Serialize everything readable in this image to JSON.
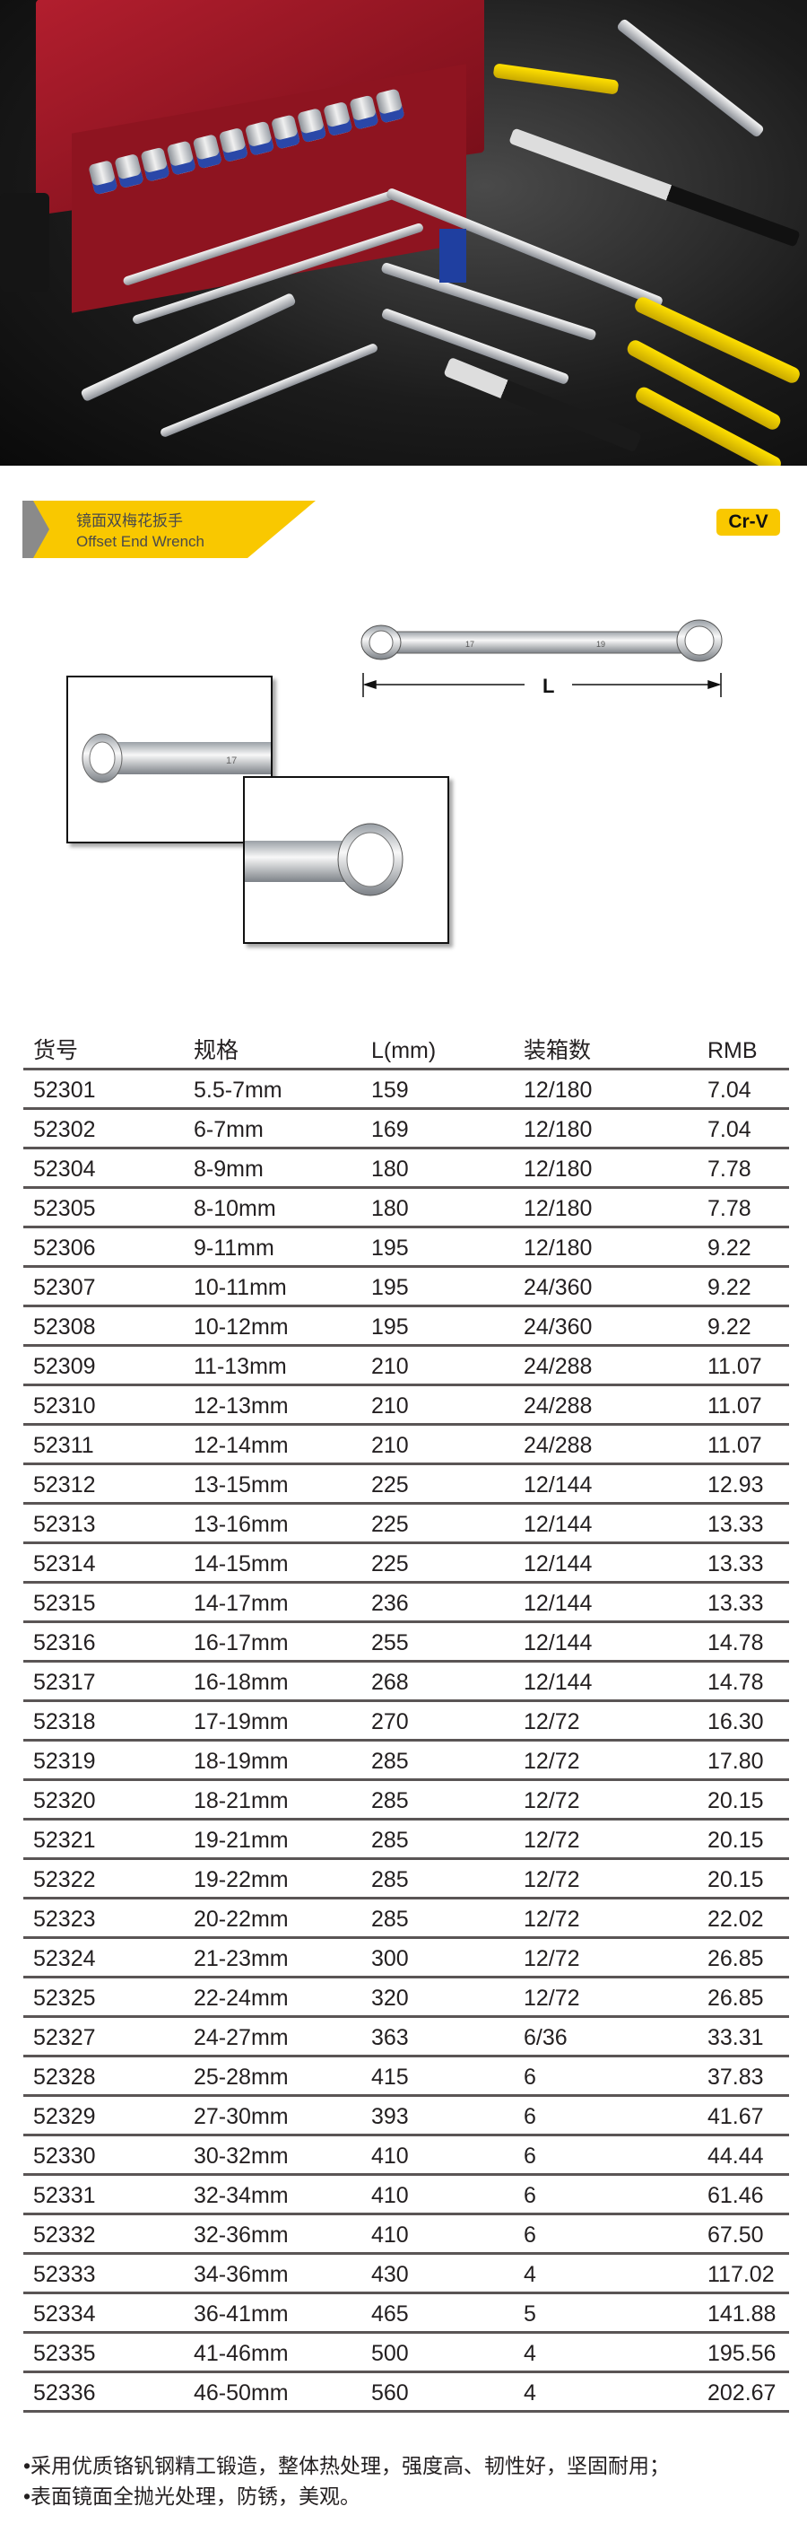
{
  "product": {
    "title_cn": "镜面双梅花扳手",
    "title_en": "Offset End Wrench",
    "material_badge": "Cr-V",
    "dimension_label": "L",
    "wrench_marks": [
      "17",
      "19"
    ],
    "brand_color": "#f9c800"
  },
  "table": {
    "headers": [
      "货号",
      "规格",
      "L(mm)",
      "装箱数",
      "RMB"
    ],
    "rows": [
      [
        "52301",
        "5.5-7mm",
        "159",
        "12/180",
        "7.04"
      ],
      [
        "52302",
        "6-7mm",
        "169",
        "12/180",
        "7.04"
      ],
      [
        "52304",
        "8-9mm",
        "180",
        "12/180",
        "7.78"
      ],
      [
        "52305",
        "8-10mm",
        "180",
        "12/180",
        "7.78"
      ],
      [
        "52306",
        "9-11mm",
        "195",
        "12/180",
        "9.22"
      ],
      [
        "52307",
        "10-11mm",
        "195",
        "24/360",
        "9.22"
      ],
      [
        "52308",
        "10-12mm",
        "195",
        "24/360",
        "9.22"
      ],
      [
        "52309",
        "11-13mm",
        "210",
        "24/288",
        "11.07"
      ],
      [
        "52310",
        "12-13mm",
        "210",
        "24/288",
        "11.07"
      ],
      [
        "52311",
        "12-14mm",
        "210",
        "24/288",
        "11.07"
      ],
      [
        "52312",
        "13-15mm",
        "225",
        "12/144",
        "12.93"
      ],
      [
        "52313",
        "13-16mm",
        "225",
        "12/144",
        "13.33"
      ],
      [
        "52314",
        "14-15mm",
        "225",
        "12/144",
        "13.33"
      ],
      [
        "52315",
        "14-17mm",
        "236",
        "12/144",
        "13.33"
      ],
      [
        "52316",
        "16-17mm",
        "255",
        "12/144",
        "14.78"
      ],
      [
        "52317",
        "16-18mm",
        "268",
        "12/144",
        "14.78"
      ],
      [
        "52318",
        "17-19mm",
        "270",
        "12/72",
        "16.30"
      ],
      [
        "52319",
        "18-19mm",
        "285",
        "12/72",
        "17.80"
      ],
      [
        "52320",
        "18-21mm",
        "285",
        "12/72",
        "20.15"
      ],
      [
        "52321",
        "19-21mm",
        "285",
        "12/72",
        "20.15"
      ],
      [
        "52322",
        "19-22mm",
        "285",
        "12/72",
        "20.15"
      ],
      [
        "52323",
        "20-22mm",
        "285",
        "12/72",
        "22.02"
      ],
      [
        "52324",
        "21-23mm",
        "300",
        "12/72",
        "26.85"
      ],
      [
        "52325",
        "22-24mm",
        "320",
        "12/72",
        "26.85"
      ],
      [
        "52327",
        "24-27mm",
        "363",
        "6/36",
        "33.31"
      ],
      [
        "52328",
        "25-28mm",
        "415",
        "6",
        "37.83"
      ],
      [
        "52329",
        "27-30mm",
        "393",
        "6",
        "41.67"
      ],
      [
        "52330",
        "30-32mm",
        "410",
        "6",
        "44.44"
      ],
      [
        "52331",
        "32-34mm",
        "410",
        "6",
        "61.46"
      ],
      [
        "52332",
        "32-36mm",
        "410",
        "6",
        "67.50"
      ],
      [
        "52333",
        "34-36mm",
        "430",
        "4",
        "117.02"
      ],
      [
        "52334",
        "36-41mm",
        "465",
        "5",
        "141.88"
      ],
      [
        "52335",
        "41-46mm",
        "500",
        "4",
        "195.56"
      ],
      [
        "52336",
        "46-50mm",
        "560",
        "4",
        "202.67"
      ]
    ]
  },
  "features": [
    "•采用优质铬钒钢精工锻造，整体热处理，强度高、韧性好，坚固耐用；",
    "•表面镜面全抛光处理，防锈，美观。"
  ]
}
